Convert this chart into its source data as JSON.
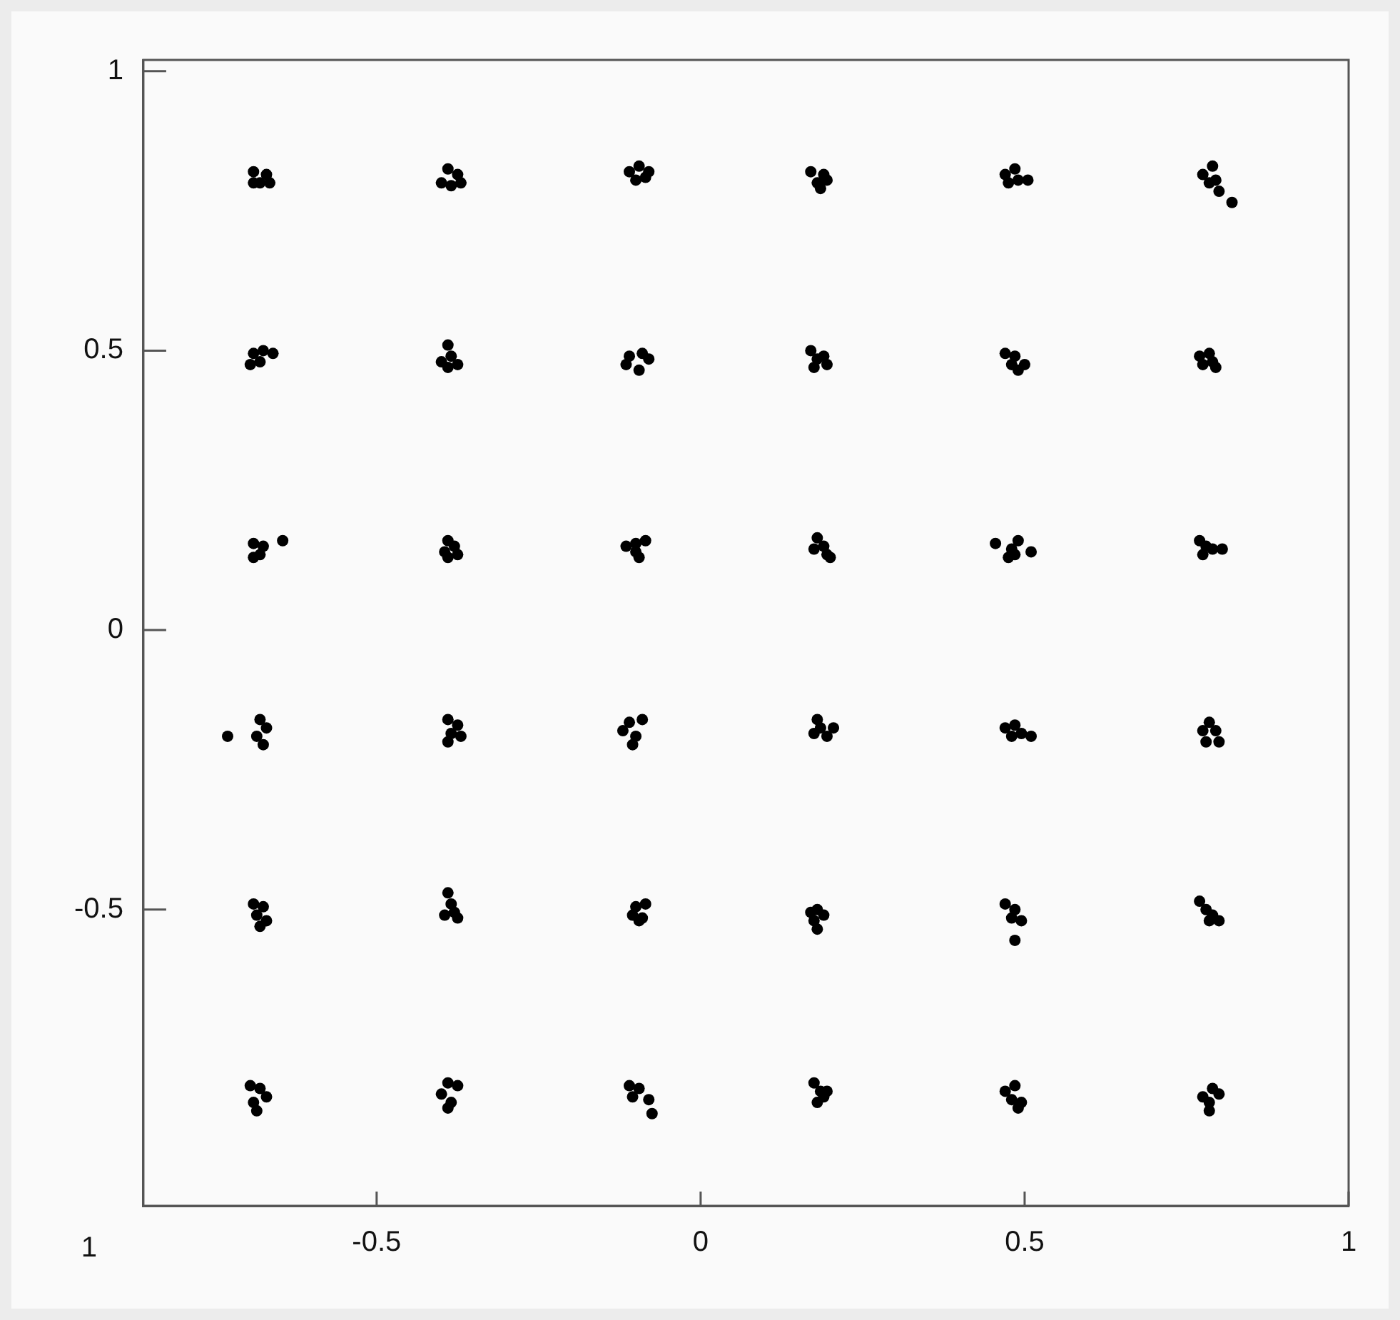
{
  "chart_data": {
    "type": "scatter",
    "marker": "circle",
    "grid": false,
    "legend": false,
    "xlim": [
      -0.86,
      1
    ],
    "xticks": [
      -0.5,
      0,
      0.5,
      1
    ],
    "ylim": [
      -1.03,
      1.02
    ],
    "yticks": [
      -0.5,
      0,
      0.5,
      1
    ],
    "annotations": [
      "1"
    ],
    "series": [
      {
        "color": "#000000",
        "x": [
          -0.69,
          -0.67,
          -0.68,
          -0.665,
          -0.69,
          -0.39,
          -0.375,
          -0.4,
          -0.385,
          -0.37,
          -0.11,
          -0.095,
          -0.08,
          -0.1,
          -0.085,
          0.17,
          0.19,
          0.18,
          0.185,
          0.195,
          0.47,
          0.485,
          0.49,
          0.475,
          0.505,
          0.775,
          0.79,
          0.785,
          0.795,
          0.8,
          0.82,
          -0.69,
          -0.675,
          -0.68,
          -0.695,
          -0.66,
          -0.39,
          -0.385,
          -0.4,
          -0.375,
          -0.39,
          -0.11,
          -0.09,
          -0.08,
          -0.115,
          -0.095,
          0.17,
          0.18,
          0.19,
          0.175,
          0.195,
          0.47,
          0.485,
          0.5,
          0.48,
          0.49,
          0.77,
          0.785,
          0.79,
          0.775,
          0.795,
          -0.69,
          -0.675,
          -0.68,
          -0.69,
          -0.645,
          -0.39,
          -0.38,
          -0.395,
          -0.375,
          -0.39,
          -0.115,
          -0.1,
          -0.085,
          -0.1,
          -0.095,
          0.18,
          0.19,
          0.175,
          0.195,
          0.2,
          0.48,
          0.49,
          0.475,
          0.485,
          0.455,
          0.51,
          0.77,
          0.78,
          0.79,
          0.775,
          0.805,
          -0.73,
          -0.68,
          -0.67,
          -0.685,
          -0.675,
          -0.39,
          -0.375,
          -0.385,
          -0.37,
          -0.39,
          -0.11,
          -0.09,
          -0.12,
          -0.1,
          -0.105,
          0.18,
          0.185,
          0.175,
          0.195,
          0.205,
          0.47,
          0.485,
          0.495,
          0.48,
          0.51,
          0.785,
          0.775,
          0.795,
          0.78,
          0.8,
          -0.69,
          -0.675,
          -0.685,
          -0.67,
          -0.68,
          -0.39,
          -0.385,
          -0.38,
          -0.395,
          -0.375,
          -0.1,
          -0.085,
          -0.105,
          -0.09,
          -0.095,
          0.17,
          0.18,
          0.19,
          0.175,
          0.18,
          0.47,
          0.485,
          0.48,
          0.495,
          0.485,
          0.77,
          0.78,
          0.79,
          0.8,
          0.785,
          -0.695,
          -0.68,
          -0.67,
          -0.69,
          -0.685,
          -0.39,
          -0.375,
          -0.4,
          -0.385,
          -0.39,
          -0.11,
          -0.095,
          -0.105,
          -0.08,
          -0.075,
          0.175,
          0.185,
          0.19,
          0.18,
          0.195,
          0.47,
          0.485,
          0.48,
          0.495,
          0.49,
          0.775,
          0.79,
          0.8,
          0.785,
          0.785
        ],
        "values": [
          0.82,
          0.815,
          0.8,
          0.8,
          0.8,
          0.825,
          0.815,
          0.8,
          0.795,
          0.8,
          0.82,
          0.83,
          0.82,
          0.805,
          0.81,
          0.82,
          0.815,
          0.8,
          0.79,
          0.805,
          0.815,
          0.825,
          0.805,
          0.8,
          0.805,
          0.815,
          0.83,
          0.8,
          0.805,
          0.785,
          0.765,
          0.495,
          0.5,
          0.48,
          0.475,
          0.495,
          0.51,
          0.49,
          0.48,
          0.475,
          0.47,
          0.49,
          0.495,
          0.485,
          0.475,
          0.465,
          0.5,
          0.485,
          0.49,
          0.47,
          0.475,
          0.495,
          0.49,
          0.475,
          0.475,
          0.465,
          0.49,
          0.495,
          0.48,
          0.475,
          0.47,
          0.155,
          0.15,
          0.135,
          0.13,
          0.16,
          0.16,
          0.15,
          0.14,
          0.135,
          0.13,
          0.15,
          0.155,
          0.16,
          0.14,
          0.13,
          0.165,
          0.15,
          0.145,
          0.135,
          0.13,
          0.145,
          0.16,
          0.13,
          0.135,
          0.155,
          0.14,
          0.16,
          0.15,
          0.145,
          0.135,
          0.145,
          -0.19,
          -0.16,
          -0.175,
          -0.19,
          -0.205,
          -0.16,
          -0.17,
          -0.185,
          -0.19,
          -0.2,
          -0.165,
          -0.16,
          -0.18,
          -0.19,
          -0.205,
          -0.16,
          -0.175,
          -0.185,
          -0.19,
          -0.175,
          -0.175,
          -0.17,
          -0.185,
          -0.19,
          -0.19,
          -0.165,
          -0.18,
          -0.18,
          -0.2,
          -0.2,
          -0.49,
          -0.495,
          -0.51,
          -0.52,
          -0.53,
          -0.47,
          -0.49,
          -0.505,
          -0.51,
          -0.515,
          -0.495,
          -0.49,
          -0.51,
          -0.515,
          -0.52,
          -0.505,
          -0.5,
          -0.51,
          -0.52,
          -0.535,
          -0.49,
          -0.5,
          -0.515,
          -0.52,
          -0.555,
          -0.485,
          -0.5,
          -0.51,
          -0.52,
          -0.52,
          -0.815,
          -0.82,
          -0.835,
          -0.845,
          -0.86,
          -0.81,
          -0.815,
          -0.83,
          -0.845,
          -0.855,
          -0.815,
          -0.82,
          -0.835,
          -0.84,
          -0.865,
          -0.81,
          -0.825,
          -0.835,
          -0.845,
          -0.825,
          -0.825,
          -0.815,
          -0.84,
          -0.845,
          -0.855,
          -0.835,
          -0.82,
          -0.83,
          -0.845,
          -0.86
        ]
      }
    ]
  }
}
